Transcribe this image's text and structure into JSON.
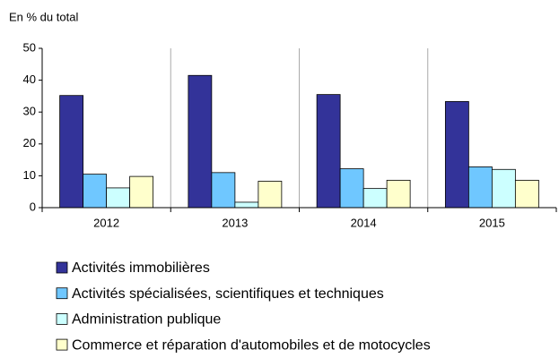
{
  "chart_data": {
    "type": "bar",
    "y_axis_label": "En % du total",
    "categories": [
      "2012",
      "2013",
      "2014",
      "2015"
    ],
    "series": [
      {
        "name": "Activités immobilières",
        "color": "#333399",
        "values": [
          35.2,
          41.5,
          35.5,
          33.3
        ]
      },
      {
        "name": "Activités spécialisées, scientifiques et techniques",
        "color": "#6fc7ff",
        "values": [
          10.5,
          11.0,
          12.2,
          12.8
        ]
      },
      {
        "name": "Administration publique",
        "color": "#ccffff",
        "values": [
          6.2,
          1.7,
          6.0,
          12.0
        ]
      },
      {
        "name": "Commerce et réparation d'automobiles et de motocycles",
        "color": "#ffffcc",
        "values": [
          9.8,
          8.3,
          8.6,
          8.6
        ]
      }
    ],
    "ylim": [
      0,
      50
    ],
    "yticks": [
      0,
      10,
      20,
      30,
      40,
      50
    ],
    "legend": "bottom"
  }
}
